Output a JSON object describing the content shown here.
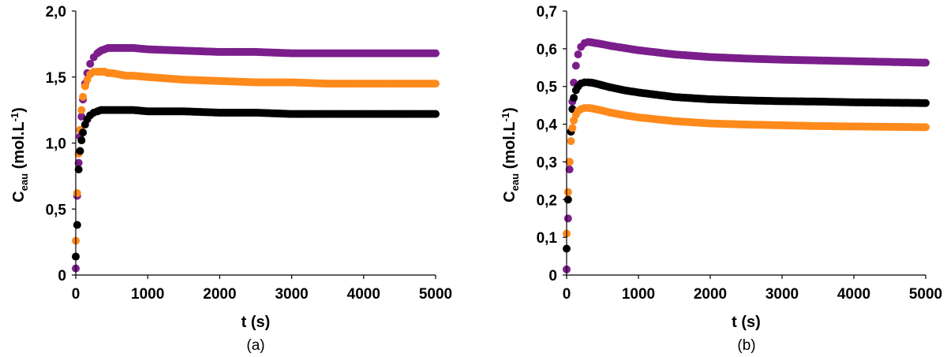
{
  "chart_data": [
    {
      "type": "scatter",
      "panel": "(a)",
      "title": "",
      "xlabel": "t (s)",
      "ylabel_main": "C",
      "ylabel_sub": "eau",
      "ylabel_unit_pre": " (mol.L",
      "ylabel_unit_sup": "-1",
      "ylabel_unit_post": ")",
      "xlim": [
        0,
        5000
      ],
      "ylim": [
        0,
        2.0
      ],
      "x_ticks": [
        "0",
        "1000",
        "2000",
        "3000",
        "4000",
        "5000"
      ],
      "x_tick_values": [
        0,
        1000,
        2000,
        3000,
        4000,
        5000
      ],
      "y_ticks": [
        "0",
        "0,5",
        "1,0",
        "1,5",
        "2,0"
      ],
      "y_tick_values": [
        0,
        0.5,
        1.0,
        1.5,
        2.0
      ],
      "grid": false,
      "legend": "none",
      "series": [
        {
          "color": "#7b1e8c",
          "x": [
            0,
            20,
            40,
            60,
            80,
            100,
            130,
            160,
            200,
            250,
            300,
            350,
            400,
            450,
            500,
            600,
            700,
            800,
            1000,
            1500,
            2000,
            2500,
            3000,
            3500,
            4000,
            4500,
            5000
          ],
          "y": [
            0.05,
            0.6,
            0.85,
            1.05,
            1.2,
            1.33,
            1.45,
            1.53,
            1.6,
            1.65,
            1.68,
            1.7,
            1.71,
            1.72,
            1.72,
            1.72,
            1.72,
            1.72,
            1.71,
            1.7,
            1.69,
            1.69,
            1.68,
            1.68,
            1.68,
            1.68,
            1.68
          ]
        },
        {
          "color": "#ff8a1c",
          "x": [
            0,
            20,
            40,
            60,
            80,
            100,
            130,
            160,
            200,
            250,
            300,
            350,
            400,
            450,
            500,
            600,
            700,
            800,
            1000,
            1500,
            2000,
            2500,
            3000,
            3500,
            4000,
            4500,
            5000
          ],
          "y": [
            0.26,
            0.62,
            0.92,
            1.1,
            1.25,
            1.35,
            1.43,
            1.48,
            1.52,
            1.54,
            1.54,
            1.54,
            1.54,
            1.53,
            1.53,
            1.52,
            1.51,
            1.51,
            1.5,
            1.48,
            1.47,
            1.46,
            1.46,
            1.45,
            1.45,
            1.45,
            1.45
          ]
        },
        {
          "color": "#000000",
          "x": [
            0,
            20,
            40,
            60,
            80,
            100,
            130,
            160,
            200,
            250,
            300,
            350,
            400,
            450,
            500,
            600,
            700,
            800,
            1000,
            1500,
            2000,
            2500,
            3000,
            3500,
            4000,
            4500,
            5000
          ],
          "y": [
            0.14,
            0.38,
            0.8,
            0.94,
            1.02,
            1.08,
            1.14,
            1.18,
            1.21,
            1.23,
            1.24,
            1.25,
            1.25,
            1.25,
            1.25,
            1.25,
            1.25,
            1.25,
            1.24,
            1.24,
            1.23,
            1.23,
            1.22,
            1.22,
            1.22,
            1.22,
            1.22
          ]
        }
      ]
    },
    {
      "type": "scatter",
      "panel": "(b)",
      "title": "",
      "xlabel": "t (s)",
      "ylabel_main": "C",
      "ylabel_sub": "eau",
      "ylabel_unit_pre": " (mol.L",
      "ylabel_unit_sup": "-1",
      "ylabel_unit_post": ")",
      "xlim": [
        0,
        5000
      ],
      "ylim": [
        0,
        0.7
      ],
      "x_ticks": [
        "0",
        "1000",
        "2000",
        "3000",
        "4000",
        "5000"
      ],
      "x_tick_values": [
        0,
        1000,
        2000,
        3000,
        4000,
        5000
      ],
      "y_ticks": [
        "0",
        "0,1",
        "0,2",
        "0,3",
        "0,4",
        "0,5",
        "0,6",
        "0,7"
      ],
      "y_tick_values": [
        0,
        0.1,
        0.2,
        0.3,
        0.4,
        0.5,
        0.6,
        0.7
      ],
      "grid": false,
      "legend": "none",
      "series": [
        {
          "color": "#7b1e8c",
          "x": [
            0,
            20,
            40,
            60,
            80,
            100,
            130,
            160,
            200,
            250,
            300,
            350,
            400,
            500,
            600,
            800,
            1000,
            1500,
            2000,
            2500,
            3000,
            3500,
            4000,
            4500,
            5000
          ],
          "y": [
            0.015,
            0.15,
            0.28,
            0.38,
            0.46,
            0.51,
            0.555,
            0.585,
            0.605,
            0.615,
            0.618,
            0.617,
            0.615,
            0.612,
            0.608,
            0.602,
            0.596,
            0.585,
            0.578,
            0.574,
            0.571,
            0.569,
            0.567,
            0.565,
            0.563
          ]
        },
        {
          "color": "#000000",
          "x": [
            0,
            20,
            40,
            60,
            80,
            100,
            130,
            160,
            200,
            250,
            300,
            350,
            400,
            500,
            600,
            800,
            1000,
            1500,
            2000,
            2500,
            3000,
            3500,
            4000,
            4500,
            5000
          ],
          "y": [
            0.07,
            0.2,
            0.3,
            0.38,
            0.44,
            0.47,
            0.49,
            0.5,
            0.508,
            0.511,
            0.511,
            0.51,
            0.508,
            0.503,
            0.498,
            0.49,
            0.484,
            0.472,
            0.466,
            0.463,
            0.461,
            0.46,
            0.458,
            0.457,
            0.456
          ]
        },
        {
          "color": "#ff8a1c",
          "x": [
            0,
            20,
            40,
            60,
            80,
            100,
            130,
            160,
            200,
            250,
            300,
            350,
            400,
            500,
            600,
            800,
            1000,
            1500,
            2000,
            2500,
            3000,
            3500,
            4000,
            4500,
            5000
          ],
          "y": [
            0.11,
            0.22,
            0.3,
            0.355,
            0.39,
            0.41,
            0.425,
            0.435,
            0.44,
            0.443,
            0.443,
            0.442,
            0.44,
            0.436,
            0.431,
            0.424,
            0.418,
            0.408,
            0.402,
            0.399,
            0.397,
            0.395,
            0.394,
            0.393,
            0.392
          ]
        }
      ]
    }
  ]
}
